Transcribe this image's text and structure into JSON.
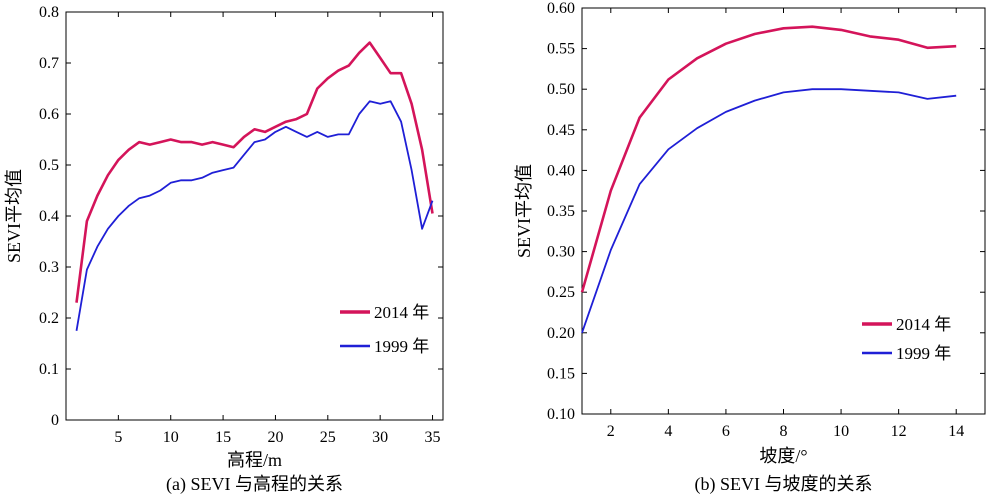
{
  "chart_data": [
    {
      "type": "line",
      "caption": "(a) SEVI 与高程的关系",
      "xlabel": "高程/m",
      "ylabel": "SEVI平均值",
      "xlim": [
        0,
        36
      ],
      "ylim": [
        0,
        0.8
      ],
      "x_ticks": [
        5,
        10,
        15,
        20,
        25,
        30,
        35
      ],
      "y_ticks": [
        0,
        0.1,
        0.2,
        0.3,
        0.4,
        0.5,
        0.6,
        0.7,
        0.8
      ],
      "y_tick_labels": [
        "0",
        "0.1",
        "0.2",
        "0.3",
        "0.4",
        "0.5",
        "0.6",
        "0.7",
        "0.8"
      ],
      "legend_position": "bottom-right",
      "series": [
        {
          "name": "2014 年",
          "color": "#d4145a",
          "x": [
            1,
            2,
            3,
            4,
            5,
            6,
            7,
            8,
            9,
            10,
            11,
            12,
            13,
            14,
            15,
            16,
            17,
            18,
            19,
            20,
            21,
            22,
            23,
            24,
            25,
            26,
            27,
            28,
            29,
            30,
            31,
            32,
            33,
            34,
            35
          ],
          "y": [
            0.23,
            0.39,
            0.44,
            0.48,
            0.51,
            0.53,
            0.545,
            0.54,
            0.545,
            0.55,
            0.545,
            0.545,
            0.54,
            0.545,
            0.54,
            0.535,
            0.555,
            0.57,
            0.565,
            0.575,
            0.585,
            0.59,
            0.6,
            0.65,
            0.67,
            0.685,
            0.695,
            0.72,
            0.74,
            0.71,
            0.68,
            0.68,
            0.62,
            0.53,
            0.405
          ]
        },
        {
          "name": "1999 年",
          "color": "#1f1fd6",
          "x": [
            1,
            2,
            3,
            4,
            5,
            6,
            7,
            8,
            9,
            10,
            11,
            12,
            13,
            14,
            15,
            16,
            17,
            18,
            19,
            20,
            21,
            22,
            23,
            24,
            25,
            26,
            27,
            28,
            29,
            30,
            31,
            32,
            33,
            34,
            35
          ],
          "y": [
            0.175,
            0.295,
            0.34,
            0.375,
            0.4,
            0.42,
            0.435,
            0.44,
            0.45,
            0.465,
            0.47,
            0.47,
            0.475,
            0.485,
            0.49,
            0.495,
            0.52,
            0.545,
            0.55,
            0.565,
            0.575,
            0.565,
            0.555,
            0.565,
            0.555,
            0.56,
            0.56,
            0.6,
            0.625,
            0.62,
            0.625,
            0.585,
            0.49,
            0.375,
            0.43
          ]
        }
      ]
    },
    {
      "type": "line",
      "caption": "(b) SEVI 与坡度的关系",
      "xlabel": "坡度/°",
      "ylabel": "SEVI平均值",
      "xlim": [
        1,
        15
      ],
      "ylim": [
        0.1,
        0.6
      ],
      "x_ticks": [
        2,
        4,
        6,
        8,
        10,
        12,
        14
      ],
      "y_ticks": [
        0.1,
        0.15,
        0.2,
        0.25,
        0.3,
        0.35,
        0.4,
        0.45,
        0.5,
        0.55,
        0.6
      ],
      "y_tick_labels": [
        "0.10",
        "0.15",
        "0.20",
        "0.25",
        "0.30",
        "0.35",
        "0.40",
        "0.45",
        "0.50",
        "0.55",
        "0.60"
      ],
      "legend_position": "bottom-right",
      "series": [
        {
          "name": "2014 年",
          "color": "#d4145a",
          "x": [
            1,
            2,
            3,
            4,
            5,
            6,
            7,
            8,
            9,
            10,
            11,
            12,
            13,
            14
          ],
          "y": [
            0.25,
            0.375,
            0.465,
            0.512,
            0.538,
            0.556,
            0.568,
            0.575,
            0.577,
            0.573,
            0.565,
            0.561,
            0.551,
            0.553
          ]
        },
        {
          "name": "1999 年",
          "color": "#1f1fd6",
          "x": [
            1,
            2,
            3,
            4,
            5,
            6,
            7,
            8,
            9,
            10,
            11,
            12,
            13,
            14
          ],
          "y": [
            0.2,
            0.302,
            0.383,
            0.426,
            0.452,
            0.472,
            0.486,
            0.496,
            0.5,
            0.5,
            0.498,
            0.496,
            0.488,
            0.492
          ]
        }
      ]
    }
  ]
}
